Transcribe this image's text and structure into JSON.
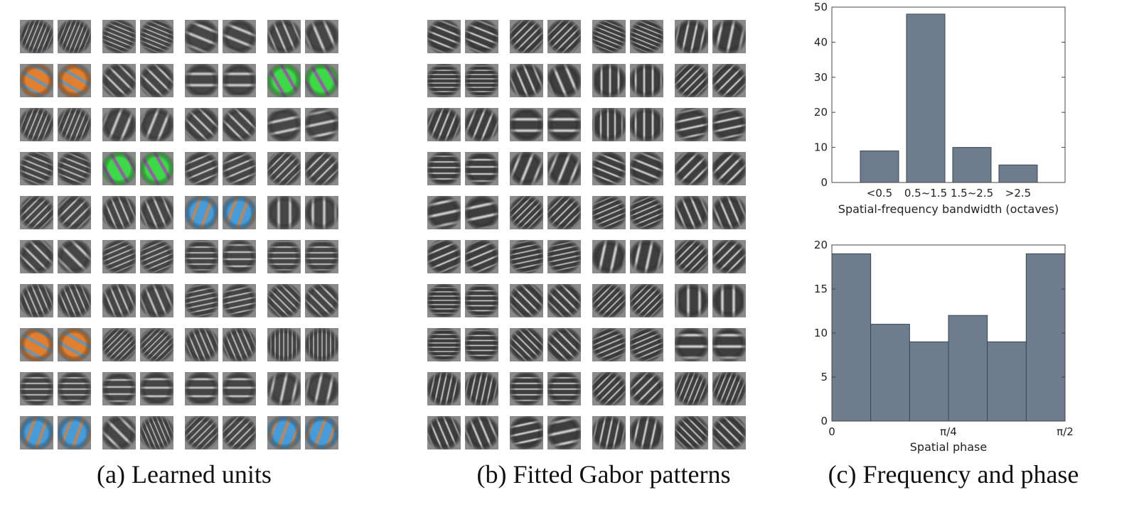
{
  "figure": {
    "captions": {
      "a": "(a) Learned units",
      "b": "(b) Fitted Gabor patterns",
      "c": "(c) Frequency and phase"
    }
  },
  "colors": {
    "bar_fill": "#6e7d8e",
    "bar_edge": "#3b4552",
    "tile_gray": "#8a8a8a",
    "chroma_orange": "#f07d1e",
    "chroma_blue": "#3a9fe8",
    "chroma_green": "#2ee83a",
    "chroma_magenta": "#b52cc8"
  },
  "chart_data": [
    {
      "type": "bar",
      "categories": [
        "<0.5",
        "0.5~1.5",
        "1.5~2.5",
        ">2.5"
      ],
      "values": [
        9,
        48,
        10,
        5
      ],
      "xlabel": "Spatial-frequency bandwidth (octaves)",
      "ylabel": "",
      "ylim": [
        0,
        50
      ],
      "yticks": [
        "0",
        "10",
        "20",
        "30",
        "40",
        "50"
      ],
      "grid": false
    },
    {
      "type": "bar",
      "bins": 6,
      "values": [
        19,
        11,
        9,
        12,
        9,
        19
      ],
      "xlabel": "Spatial phase",
      "ylabel": "",
      "xlim": [
        0,
        1.5708
      ],
      "xticks": [
        "0",
        "π/4",
        "π/2"
      ],
      "ylim": [
        0,
        20
      ],
      "yticks": [
        "0",
        "5",
        "10",
        "15",
        "20"
      ],
      "grid": false
    }
  ]
}
